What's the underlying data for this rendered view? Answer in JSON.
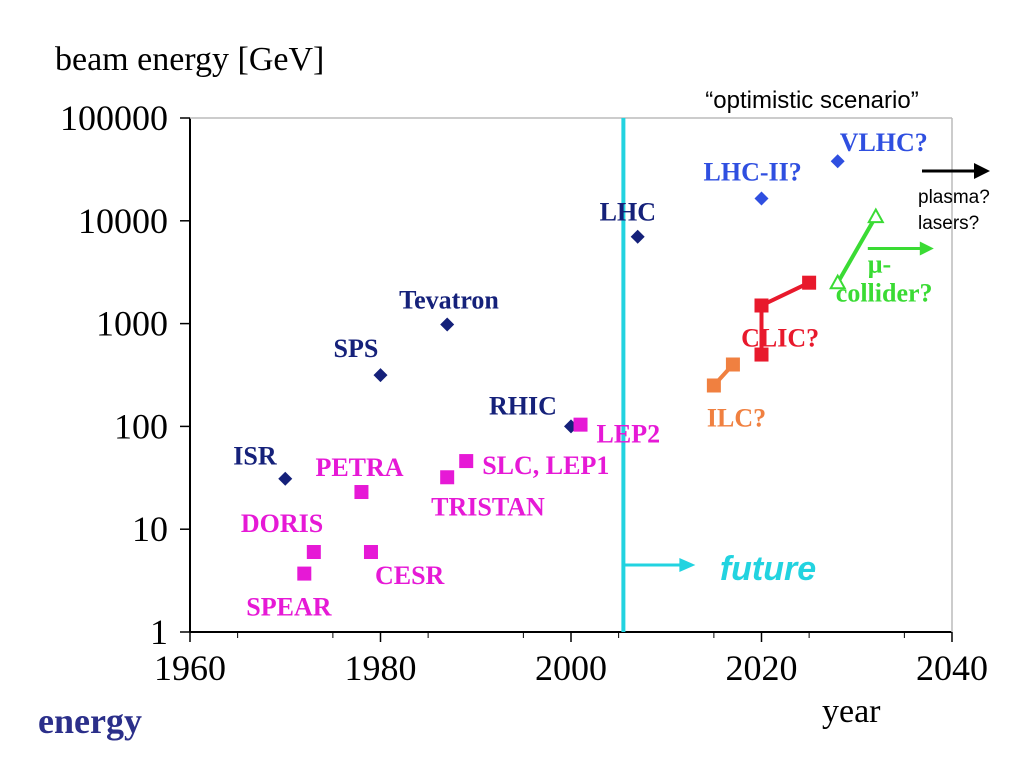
{
  "chart_data": {
    "type": "scatter",
    "ylabel": "beam energy [GeV]",
    "xlabel": "year",
    "xlim": [
      1960,
      2040
    ],
    "ylim": [
      1,
      100000
    ],
    "y_scale": "log",
    "x_ticks": [
      "1960",
      "1980",
      "2000",
      "2020",
      "2040"
    ],
    "y_ticks": [
      "1",
      "10",
      "100",
      "1000",
      "10000",
      "100000"
    ],
    "y_tick_values": [
      1,
      10,
      100,
      1000,
      10000,
      100000
    ],
    "x_tick_values": [
      1960,
      1980,
      2000,
      2020,
      2040
    ],
    "grid": false,
    "corner_label": "energy",
    "scenario_label": "“optimistic scenario”",
    "future": {
      "label": "future",
      "year": 2005.5,
      "color": "#22D3E0"
    },
    "plasma_lasers": {
      "labels": [
        "plasma?",
        "lasers?"
      ]
    },
    "colors": {
      "hadron": "#15217A",
      "lepton": "#E619D6",
      "future_hadron": "#2F4FE0",
      "ilc": "#F08040",
      "clic": "#E8192C",
      "muon": "#3ADB34"
    },
    "hadron_colliders": [
      {
        "name": "ISR",
        "x": 1970,
        "y": 31
      },
      {
        "name": "SPS",
        "x": 1980,
        "y": 315
      },
      {
        "name": "Tevatron",
        "x": 1987,
        "y": 980
      },
      {
        "name": "RHIC",
        "x": 2000,
        "y": 100
      },
      {
        "name": "LHC",
        "x": 2007,
        "y": 7000
      }
    ],
    "lepton_colliders": [
      {
        "name": "SPEAR",
        "x": 1972,
        "y": 3.7
      },
      {
        "name": "DORIS",
        "x": 1973,
        "y": 6
      },
      {
        "name": "CESR",
        "x": 1979,
        "y": 6
      },
      {
        "name": "PETRA",
        "x": 1978,
        "y": 23
      },
      {
        "name": "TRISTAN",
        "x": 1987,
        "y": 32
      },
      {
        "name": "SLC, LEP1",
        "x": 1989,
        "y": 46
      },
      {
        "name": "LEP2",
        "x": 2001,
        "y": 104
      }
    ],
    "future_hadron": [
      {
        "name": "LHC-II?",
        "x": 2020,
        "y": 16500
      },
      {
        "name": "VLHC?",
        "x": 2028,
        "y": 38000
      }
    ],
    "ilc": {
      "name": "ILC?",
      "points": [
        {
          "x": 2015,
          "y": 250
        },
        {
          "x": 2017,
          "y": 400
        }
      ]
    },
    "clic": {
      "name": "CLIC?",
      "points": [
        {
          "x": 2020,
          "y": 500
        },
        {
          "x": 2020,
          "y": 1500
        },
        {
          "x": 2025,
          "y": 2500
        }
      ]
    },
    "muon": {
      "name_lines": [
        "μ-",
        "collider?"
      ],
      "points": [
        {
          "x": 2028,
          "y": 2500
        },
        {
          "x": 2032,
          "y": 11000
        }
      ]
    }
  }
}
